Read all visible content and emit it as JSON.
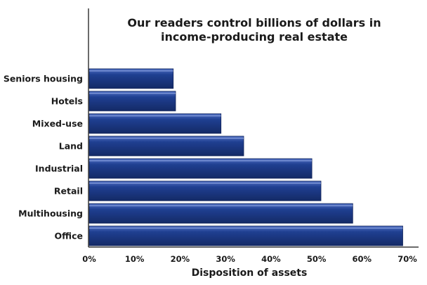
{
  "chart_data": {
    "type": "bar",
    "orientation": "horizontal",
    "title_lines": [
      "Our readers control billions of dollars in",
      "income-producing real estate"
    ],
    "xlabel": "Disposition of assets",
    "ylabel": "",
    "categories": [
      "Seniors housing",
      "Hotels",
      "Mixed-use",
      "Land",
      "Industrial",
      "Retail",
      "Multihousing",
      "Office"
    ],
    "values": [
      18.5,
      19,
      29,
      34,
      49,
      51,
      58,
      69
    ],
    "xlim": [
      0,
      70
    ],
    "xticks": [
      "0%",
      "10%",
      "20%",
      "30%",
      "40%",
      "50%",
      "60%",
      "70%"
    ],
    "bar_color": "#1f3f91",
    "bar_highlight": "#4f6fc4",
    "grid": false
  }
}
